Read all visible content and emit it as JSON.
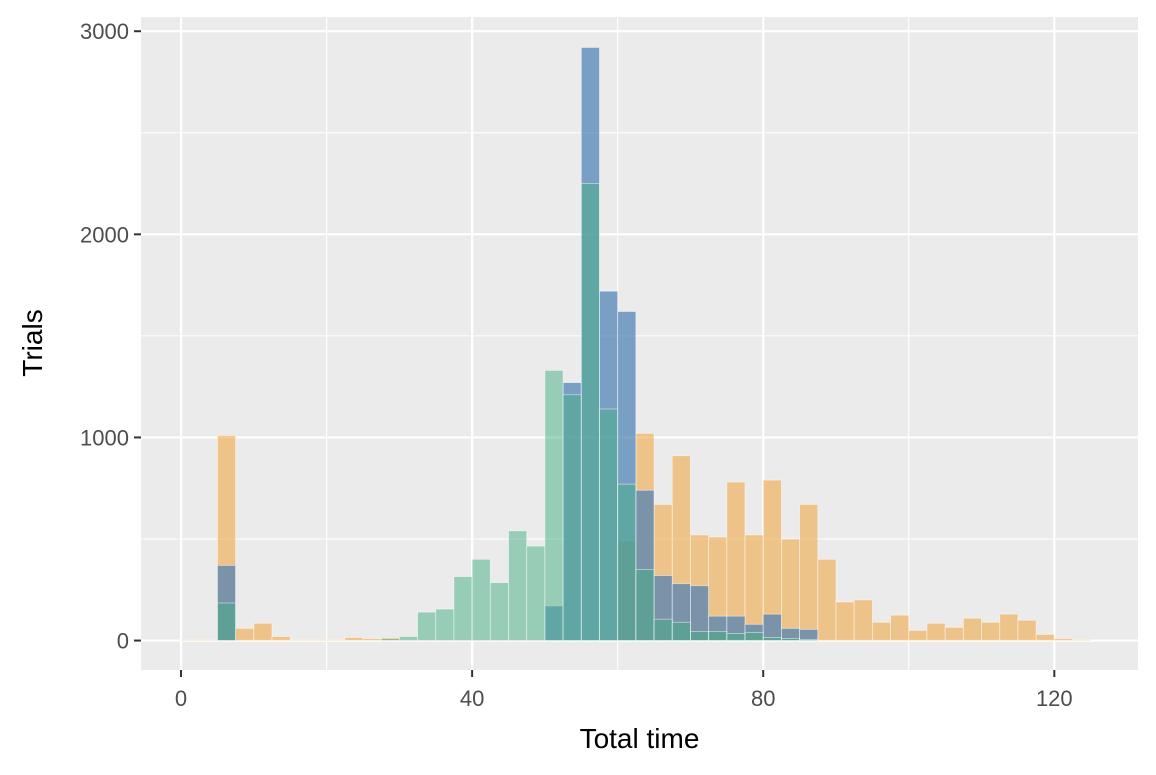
{
  "chart_data": {
    "type": "bar",
    "overlay": true,
    "title": "",
    "xlabel": "Total time",
    "ylabel": "Trials",
    "xlim": [
      -5.5,
      131.5
    ],
    "ylim": [
      -145,
      3070
    ],
    "x_ticks": [
      0,
      40,
      80,
      120
    ],
    "x_tick_labels": [
      "0",
      "40",
      "80",
      "120"
    ],
    "y_ticks": [
      0,
      1000,
      2000,
      3000
    ],
    "y_tick_labels": [
      "0",
      "1000",
      "2000",
      "3000"
    ],
    "bin_width": 2.5,
    "bin_starts": [
      0,
      2.5,
      5,
      7.5,
      10,
      12.5,
      15,
      17.5,
      20,
      22.5,
      25,
      27.5,
      30,
      32.5,
      35,
      37.5,
      40,
      42.5,
      45,
      47.5,
      50,
      52.5,
      55,
      57.5,
      60,
      62.5,
      65,
      67.5,
      70,
      72.5,
      75,
      77.5,
      80,
      82.5,
      85,
      87.5,
      90,
      92.5,
      95,
      97.5,
      100,
      102.5,
      105,
      107.5,
      110,
      112.5,
      115,
      117.5,
      120,
      122.5,
      125
    ],
    "grid": true,
    "legend": "none",
    "background_color": "#ebebeb",
    "grid_color": "#ffffff",
    "series": [
      {
        "color": "#f0a94a",
        "opacity": 0.6,
        "values": [
          5,
          5,
          1010,
          60,
          85,
          20,
          5,
          5,
          5,
          15,
          10,
          15,
          5,
          5,
          5,
          5,
          5,
          5,
          5,
          5,
          5,
          5,
          5,
          5,
          490,
          1020,
          670,
          910,
          520,
          510,
          780,
          520,
          790,
          500,
          670,
          400,
          190,
          200,
          90,
          125,
          50,
          85,
          65,
          110,
          90,
          130,
          100,
          30,
          10,
          5,
          0
        ]
      },
      {
        "color": "#4a7fb5",
        "opacity": 0.7,
        "values": [
          0,
          0,
          370,
          0,
          0,
          0,
          0,
          0,
          0,
          0,
          0,
          0,
          0,
          0,
          0,
          0,
          0,
          0,
          0,
          0,
          170,
          1270,
          2920,
          1720,
          1620,
          740,
          320,
          280,
          270,
          120,
          120,
          80,
          130,
          60,
          55,
          0,
          0,
          0,
          0,
          0,
          0,
          0,
          0,
          0,
          0,
          0,
          0,
          0,
          0,
          0,
          0
        ]
      },
      {
        "color": "#44ad84",
        "opacity": 0.5,
        "values": [
          0,
          0,
          185,
          0,
          0,
          0,
          0,
          0,
          0,
          0,
          0,
          10,
          20,
          140,
          155,
          315,
          400,
          285,
          540,
          465,
          1330,
          1210,
          2250,
          1140,
          770,
          350,
          105,
          90,
          45,
          45,
          35,
          40,
          15,
          10,
          5,
          0,
          0,
          0,
          0,
          0,
          0,
          0,
          0,
          0,
          0,
          0,
          0,
          0,
          0,
          0,
          0
        ]
      }
    ]
  }
}
